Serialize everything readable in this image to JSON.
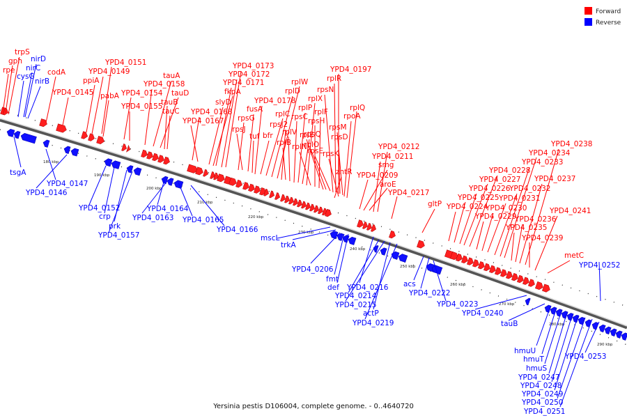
{
  "caption": "Yersinia pestis D106004, complete genome. - 0..4640720",
  "legend": [
    {
      "label": "Forward",
      "color": "#ff0000"
    },
    {
      "label": "Reverse",
      "color": "#0000ff"
    }
  ],
  "ticks": [
    "180 kbp",
    "190 kbp",
    "200 kbp",
    "210 kbp",
    "220 kbp",
    "230 kbp",
    "240 kbp",
    "250 kbp",
    "260 kbp",
    "270 kbp",
    "280 kbp",
    "290 kbp"
  ],
  "forward_labels": [
    "rpe",
    "gph",
    "trpS",
    "codA",
    "YPD4_0145",
    "ppiA",
    "YPD4_0149",
    "YPD4_0151",
    "pabA",
    "YPD4_0154",
    "YPD4_0155",
    "YPD4_0158",
    "tauA",
    "tauD",
    "tauB",
    "tauC",
    "YPD4_0168",
    "YPD4_0167",
    "slyD",
    "fkpA",
    "YPD4_0171",
    "YPD4_0172",
    "YPD4_0173",
    "rpsG",
    "rpsJ",
    "fusA",
    "tuf",
    "bfr",
    "YPD4_0178",
    "rplC",
    "rplD",
    "rplW",
    "rpsJ2",
    "rplB",
    "rplV",
    "rpsC",
    "rplP",
    "rpsQ",
    "rplX",
    "rplN",
    "rpsH",
    "rplF",
    "rplE",
    "rplO",
    "rpsE",
    "rpsN",
    "rplR",
    "YPD4_0197",
    "rpsD",
    "rpsM",
    "rpoA",
    "rplQ",
    "rpsK",
    "zntR",
    "YPD4_0209",
    "smg",
    "aroE",
    "YPD4_0211",
    "YPD4_0212",
    "YPD4_0217",
    "gltP",
    "YPD4_0224",
    "YPD4_0225",
    "YPD4_0226",
    "YPD4_0227",
    "YPD4_0228",
    "YPD4_0229",
    "YPD4_0230",
    "YPD4_0231",
    "YPD4_0232",
    "YPD4_0233",
    "YPD4_0234",
    "YPD4_0235",
    "YPD4_0236",
    "YPD4_0237",
    "YPD4_0238",
    "YPD4_0239",
    "YPD4_0241",
    "metC"
  ],
  "reverse_labels": [
    "nirD",
    "nirC",
    "cysG",
    "nirB",
    "tsgA",
    "YPD4_0147",
    "YPD4_0146",
    "YPD4_0152",
    "crp",
    "prk",
    "YPD4_0157",
    "YPD4_0164",
    "YPD4_0163",
    "YPD4_0165",
    "YPD4_0166",
    "mscL",
    "trkA",
    "YPD4_0206",
    "fmt",
    "def",
    "YPD4_0216",
    "YPD4_0214",
    "YPD4_0215",
    "actP",
    "YPD4_0219",
    "acs",
    "YPD4_0222",
    "YPD4_0223",
    "YPD4_0240",
    "YPD4_0252",
    "tauB",
    "hmuU",
    "hmuT",
    "hmuS",
    "YPD4_0247",
    "YPD4_0248",
    "YPD4_0249",
    "YPD4_0250",
    "YPD4_0251",
    "YPD4_0253"
  ]
}
